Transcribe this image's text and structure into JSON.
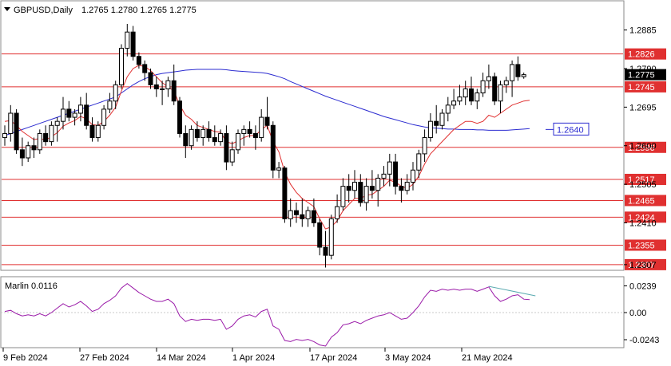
{
  "header": {
    "symbol": "GBPUSD,Daily",
    "ohlc": "1.2765 1.2780 1.2765 1.2775"
  },
  "indicator": {
    "label": "Marlin 0.0116"
  },
  "colors": {
    "level_line": "#e03030",
    "ma_slow": "#2b2bd0",
    "ma_fast": "#e03030",
    "oscillator": "#9a1aa8",
    "divergence": "#5aaab0",
    "price_box": "#000000",
    "ma_label": "#2b2bd0"
  },
  "chart_data": {
    "type": "candlestick",
    "x_axis_labels": [
      "9 Feb 2024",
      "27 Feb 2024",
      "14 Mar 2024",
      "1 Apr 2024",
      "17 Apr 2024",
      "3 May 2024",
      "21 May 2024"
    ],
    "y_axis_ticks": [
      "1.2885",
      "1.2790",
      "1.2695",
      "1.2600",
      "1.2505",
      "1.2410",
      "1.2307"
    ],
    "price_range": [
      1.2295,
      1.2955
    ],
    "current_price": "1.2775",
    "levels": [
      {
        "label": "1.2826",
        "value": 1.2826
      },
      {
        "label": "1.2745",
        "value": 1.2745
      },
      {
        "label": "1.2596",
        "value": 1.2596
      },
      {
        "label": "1.2517",
        "value": 1.2517
      },
      {
        "label": "1.2465",
        "value": 1.2465
      },
      {
        "label": "1.2424",
        "value": 1.2424
      },
      {
        "label": "1.2355",
        "value": 1.2355
      },
      {
        "label": "1.2307",
        "value": 1.2307
      }
    ],
    "ma_label": "1.2640",
    "ma_label_value": 1.264,
    "ohlc": [
      [
        1.262,
        1.265,
        1.26,
        1.263
      ],
      [
        1.263,
        1.27,
        1.261,
        1.268
      ],
      [
        1.268,
        1.269,
        1.258,
        1.259
      ],
      [
        1.259,
        1.262,
        1.255,
        1.257
      ],
      [
        1.257,
        1.261,
        1.256,
        1.26
      ],
      [
        1.26,
        1.262,
        1.257,
        1.259
      ],
      [
        1.259,
        1.264,
        1.258,
        1.263
      ],
      [
        1.263,
        1.265,
        1.26,
        1.261
      ],
      [
        1.261,
        1.266,
        1.26,
        1.265
      ],
      [
        1.265,
        1.267,
        1.261,
        1.266
      ],
      [
        1.266,
        1.272,
        1.264,
        1.269
      ],
      [
        1.269,
        1.271,
        1.266,
        1.267
      ],
      [
        1.267,
        1.269,
        1.265,
        1.268
      ],
      [
        1.268,
        1.272,
        1.266,
        1.27
      ],
      [
        1.27,
        1.273,
        1.264,
        1.265
      ],
      [
        1.265,
        1.267,
        1.261,
        1.262
      ],
      [
        1.262,
        1.266,
        1.261,
        1.265
      ],
      [
        1.265,
        1.27,
        1.264,
        1.269
      ],
      [
        1.269,
        1.273,
        1.268,
        1.271
      ],
      [
        1.271,
        1.276,
        1.269,
        1.275
      ],
      [
        1.275,
        1.285,
        1.274,
        1.284
      ],
      [
        1.284,
        1.29,
        1.282,
        1.288
      ],
      [
        1.288,
        1.2895,
        1.281,
        1.282
      ],
      [
        1.282,
        1.283,
        1.279,
        1.28
      ],
      [
        1.28,
        1.281,
        1.276,
        1.278
      ],
      [
        1.278,
        1.279,
        1.274,
        1.275
      ],
      [
        1.275,
        1.277,
        1.272,
        1.274
      ],
      [
        1.274,
        1.276,
        1.27,
        1.274
      ],
      [
        1.274,
        1.277,
        1.272,
        1.276
      ],
      [
        1.276,
        1.28,
        1.27,
        1.271
      ],
      [
        1.271,
        1.272,
        1.262,
        1.263
      ],
      [
        1.263,
        1.265,
        1.257,
        1.26
      ],
      [
        1.26,
        1.265,
        1.259,
        1.264
      ],
      [
        1.264,
        1.266,
        1.261,
        1.262
      ],
      [
        1.262,
        1.265,
        1.26,
        1.264
      ],
      [
        1.264,
        1.266,
        1.261,
        1.262
      ],
      [
        1.262,
        1.265,
        1.26,
        1.261
      ],
      [
        1.261,
        1.264,
        1.26,
        1.263
      ],
      [
        1.263,
        1.265,
        1.254,
        1.256
      ],
      [
        1.256,
        1.261,
        1.255,
        1.259
      ],
      [
        1.259,
        1.264,
        1.258,
        1.263
      ],
      [
        1.263,
        1.265,
        1.26,
        1.264
      ],
      [
        1.264,
        1.266,
        1.262,
        1.263
      ],
      [
        1.263,
        1.265,
        1.259,
        1.262
      ],
      [
        1.262,
        1.269,
        1.261,
        1.267
      ],
      [
        1.267,
        1.272,
        1.264,
        1.265
      ],
      [
        1.265,
        1.266,
        1.252,
        1.254
      ],
      [
        1.254,
        1.256,
        1.252,
        1.2545
      ],
      [
        1.2545,
        1.255,
        1.241,
        1.242
      ],
      [
        1.242,
        1.247,
        1.24,
        1.244
      ],
      [
        1.244,
        1.246,
        1.241,
        1.243
      ],
      [
        1.243,
        1.247,
        1.24,
        1.242
      ],
      [
        1.242,
        1.245,
        1.24,
        1.244
      ],
      [
        1.244,
        1.247,
        1.24,
        1.241
      ],
      [
        1.241,
        1.242,
        1.233,
        1.235
      ],
      [
        1.235,
        1.239,
        1.23,
        1.233
      ],
      [
        1.233,
        1.243,
        1.232,
        1.242
      ],
      [
        1.242,
        1.248,
        1.241,
        1.245
      ],
      [
        1.245,
        1.252,
        1.244,
        1.25
      ],
      [
        1.25,
        1.253,
        1.246,
        1.249
      ],
      [
        1.249,
        1.254,
        1.247,
        1.251
      ],
      [
        1.251,
        1.253,
        1.245,
        1.246
      ],
      [
        1.246,
        1.252,
        1.244,
        1.25
      ],
      [
        1.25,
        1.254,
        1.247,
        1.249
      ],
      [
        1.249,
        1.253,
        1.245,
        1.252
      ],
      [
        1.252,
        1.255,
        1.25,
        1.253
      ],
      [
        1.253,
        1.258,
        1.25,
        1.256
      ],
      [
        1.256,
        1.258,
        1.248,
        1.25
      ],
      [
        1.25,
        1.252,
        1.246,
        1.249
      ],
      [
        1.249,
        1.253,
        1.248,
        1.251
      ],
      [
        1.251,
        1.256,
        1.249,
        1.254
      ],
      [
        1.254,
        1.259,
        1.252,
        1.258
      ],
      [
        1.258,
        1.264,
        1.256,
        1.262
      ],
      [
        1.262,
        1.268,
        1.261,
        1.266
      ],
      [
        1.266,
        1.27,
        1.263,
        1.265
      ],
      [
        1.265,
        1.269,
        1.264,
        1.268
      ],
      [
        1.268,
        1.272,
        1.266,
        1.27
      ],
      [
        1.27,
        1.274,
        1.269,
        1.271
      ],
      [
        1.271,
        1.275,
        1.27,
        1.272
      ],
      [
        1.272,
        1.276,
        1.27,
        1.274
      ],
      [
        1.274,
        1.277,
        1.27,
        1.271
      ],
      [
        1.271,
        1.274,
        1.269,
        1.273
      ],
      [
        1.273,
        1.278,
        1.272,
        1.276
      ],
      [
        1.276,
        1.28,
        1.274,
        1.277
      ],
      [
        1.277,
        1.278,
        1.27,
        1.271
      ],
      [
        1.271,
        1.276,
        1.268,
        1.275
      ],
      [
        1.275,
        1.277,
        1.273,
        1.276
      ],
      [
        1.276,
        1.281,
        1.272,
        1.28
      ],
      [
        1.28,
        1.282,
        1.276,
        1.277
      ],
      [
        1.277,
        1.278,
        1.2765,
        1.2775
      ]
    ],
    "ma_slow": [
      1.2625,
      1.263,
      1.2635,
      1.264,
      1.2645,
      1.265,
      1.2655,
      1.266,
      1.2665,
      1.267,
      1.2675,
      1.268,
      1.2685,
      1.269,
      1.2695,
      1.27,
      1.2705,
      1.271,
      1.2715,
      1.272,
      1.273,
      1.274,
      1.275,
      1.2758,
      1.2765,
      1.277,
      1.2775,
      1.2778,
      1.278,
      1.2782,
      1.2784,
      1.2786,
      1.2787,
      1.2788,
      1.2788,
      1.2788,
      1.2788,
      1.2788,
      1.2787,
      1.2785,
      1.2784,
      1.2783,
      1.2782,
      1.2781,
      1.278,
      1.2778,
      1.2774,
      1.277,
      1.2765,
      1.2758,
      1.2752,
      1.2746,
      1.274,
      1.2734,
      1.2728,
      1.2722,
      1.2717,
      1.2712,
      1.2707,
      1.2702,
      1.2697,
      1.2692,
      1.2687,
      1.2682,
      1.2677,
      1.2672,
      1.2668,
      1.2664,
      1.266,
      1.2656,
      1.2652,
      1.2649,
      1.2646,
      1.2644,
      1.2643,
      1.2642,
      1.2641,
      1.2641,
      1.264,
      1.264,
      1.264,
      1.2639,
      1.2639,
      1.2638,
      1.2638,
      1.2638,
      1.2638,
      1.2639,
      1.264,
      1.2641,
      1.2642
    ],
    "ma_fast": [
      1.266,
      1.2662,
      1.265,
      1.2635,
      1.2625,
      1.2615,
      1.2618,
      1.2614,
      1.2622,
      1.2632,
      1.2648,
      1.2656,
      1.2662,
      1.2672,
      1.2666,
      1.2652,
      1.265,
      1.266,
      1.2675,
      1.2695,
      1.2735,
      1.277,
      1.279,
      1.2798,
      1.2795,
      1.2785,
      1.277,
      1.2755,
      1.2745,
      1.2735,
      1.27,
      1.2675,
      1.2665,
      1.265,
      1.2645,
      1.264,
      1.2635,
      1.2633,
      1.261,
      1.2605,
      1.2612,
      1.262,
      1.2625,
      1.2625,
      1.264,
      1.265,
      1.261,
      1.2585,
      1.2535,
      1.2505,
      1.2485,
      1.247,
      1.246,
      1.245,
      1.242,
      1.2395,
      1.24,
      1.2415,
      1.244,
      1.2455,
      1.247,
      1.247,
      1.2478,
      1.248,
      1.249,
      1.25,
      1.2515,
      1.251,
      1.25,
      1.2495,
      1.2505,
      1.2525,
      1.2555,
      1.258,
      1.2595,
      1.261,
      1.2625,
      1.264,
      1.265,
      1.266,
      1.266,
      1.2655,
      1.266,
      1.2675,
      1.267,
      1.268,
      1.269,
      1.27,
      1.2705,
      1.271,
      1.2712
    ],
    "oscillator": {
      "name": "Marlin",
      "value": 0.0116,
      "ticks": [
        "0.0239",
        "0.00",
        "-0.0243"
      ],
      "range": [
        -0.03,
        0.03
      ],
      "values": [
        0.001,
        0.002,
        -0.001,
        -0.003,
        -0.002,
        -0.003,
        -0.001,
        -0.003,
        0.0,
        0.004,
        0.008,
        0.005,
        0.007,
        0.01,
        0.006,
        0.001,
        0.003,
        0.008,
        0.011,
        0.015,
        0.022,
        0.026,
        0.022,
        0.018,
        0.015,
        0.012,
        0.01,
        0.01,
        0.012,
        0.008,
        -0.003,
        -0.008,
        -0.006,
        -0.007,
        -0.006,
        -0.006,
        -0.007,
        -0.006,
        -0.015,
        -0.012,
        -0.006,
        -0.003,
        -0.002,
        -0.004,
        0.001,
        0.003,
        -0.012,
        -0.015,
        -0.025,
        -0.026,
        -0.024,
        -0.025,
        -0.024,
        -0.026,
        -0.029,
        -0.03,
        -0.022,
        -0.018,
        -0.011,
        -0.01,
        -0.008,
        -0.01,
        -0.007,
        -0.005,
        -0.003,
        -0.002,
        0.0,
        -0.003,
        -0.006,
        -0.005,
        0.0,
        0.006,
        0.014,
        0.02,
        0.019,
        0.021,
        0.02,
        0.021,
        0.02,
        0.021,
        0.021,
        0.019,
        0.021,
        0.023,
        0.015,
        0.01,
        0.012,
        0.015,
        0.016,
        0.012,
        0.0116
      ],
      "divergence": [
        [
          83,
          0.0235
        ],
        [
          91,
          0.015
        ]
      ]
    }
  }
}
